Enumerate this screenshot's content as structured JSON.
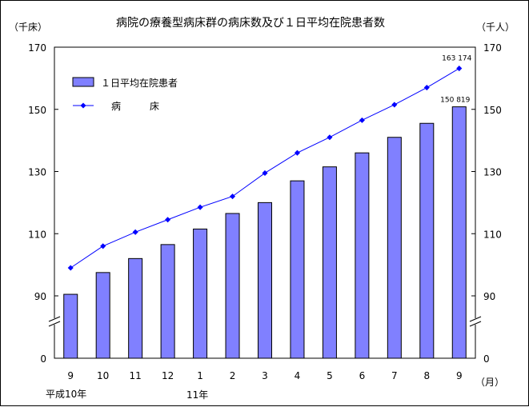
{
  "chart_data": {
    "type": "bar+line",
    "title": "病院の療養型病床群の病床数及び１日平均在院患者数",
    "left_unit": "（千床）",
    "right_unit": "（千人）",
    "month_unit": "（月）",
    "categories": [
      "9",
      "10",
      "11",
      "12",
      "1",
      "2",
      "3",
      "4",
      "5",
      "6",
      "7",
      "8",
      "9"
    ],
    "era_labels": {
      "first": "平成10年",
      "second": "11年"
    },
    "y_ticks": [
      "170",
      "150",
      "130",
      "110",
      "90",
      "0"
    ],
    "y_tick_values": [
      170,
      150,
      130,
      110,
      90,
      0
    ],
    "axis_break": {
      "from": 0,
      "to": 90
    },
    "ylim": [
      0,
      170
    ],
    "grid": false,
    "legend_position": "top-left",
    "series": [
      {
        "name": "１日平均在院患者",
        "kind": "bar",
        "axis": "right",
        "color": "#8080ff",
        "values": [
          90.5,
          97.5,
          102.0,
          106.5,
          111.5,
          116.5,
          120.0,
          127.0,
          131.5,
          136.0,
          141.0,
          145.5,
          150.819
        ]
      },
      {
        "name": "病　　　床",
        "kind": "line",
        "axis": "left",
        "color": "#0000ff",
        "values": [
          99.0,
          106.0,
          110.5,
          114.5,
          118.5,
          122.0,
          129.5,
          136.0,
          141.0,
          146.5,
          151.5,
          157.0,
          163.174
        ]
      }
    ],
    "data_labels": {
      "bar_last": "150 819",
      "line_last": "163 174"
    }
  }
}
